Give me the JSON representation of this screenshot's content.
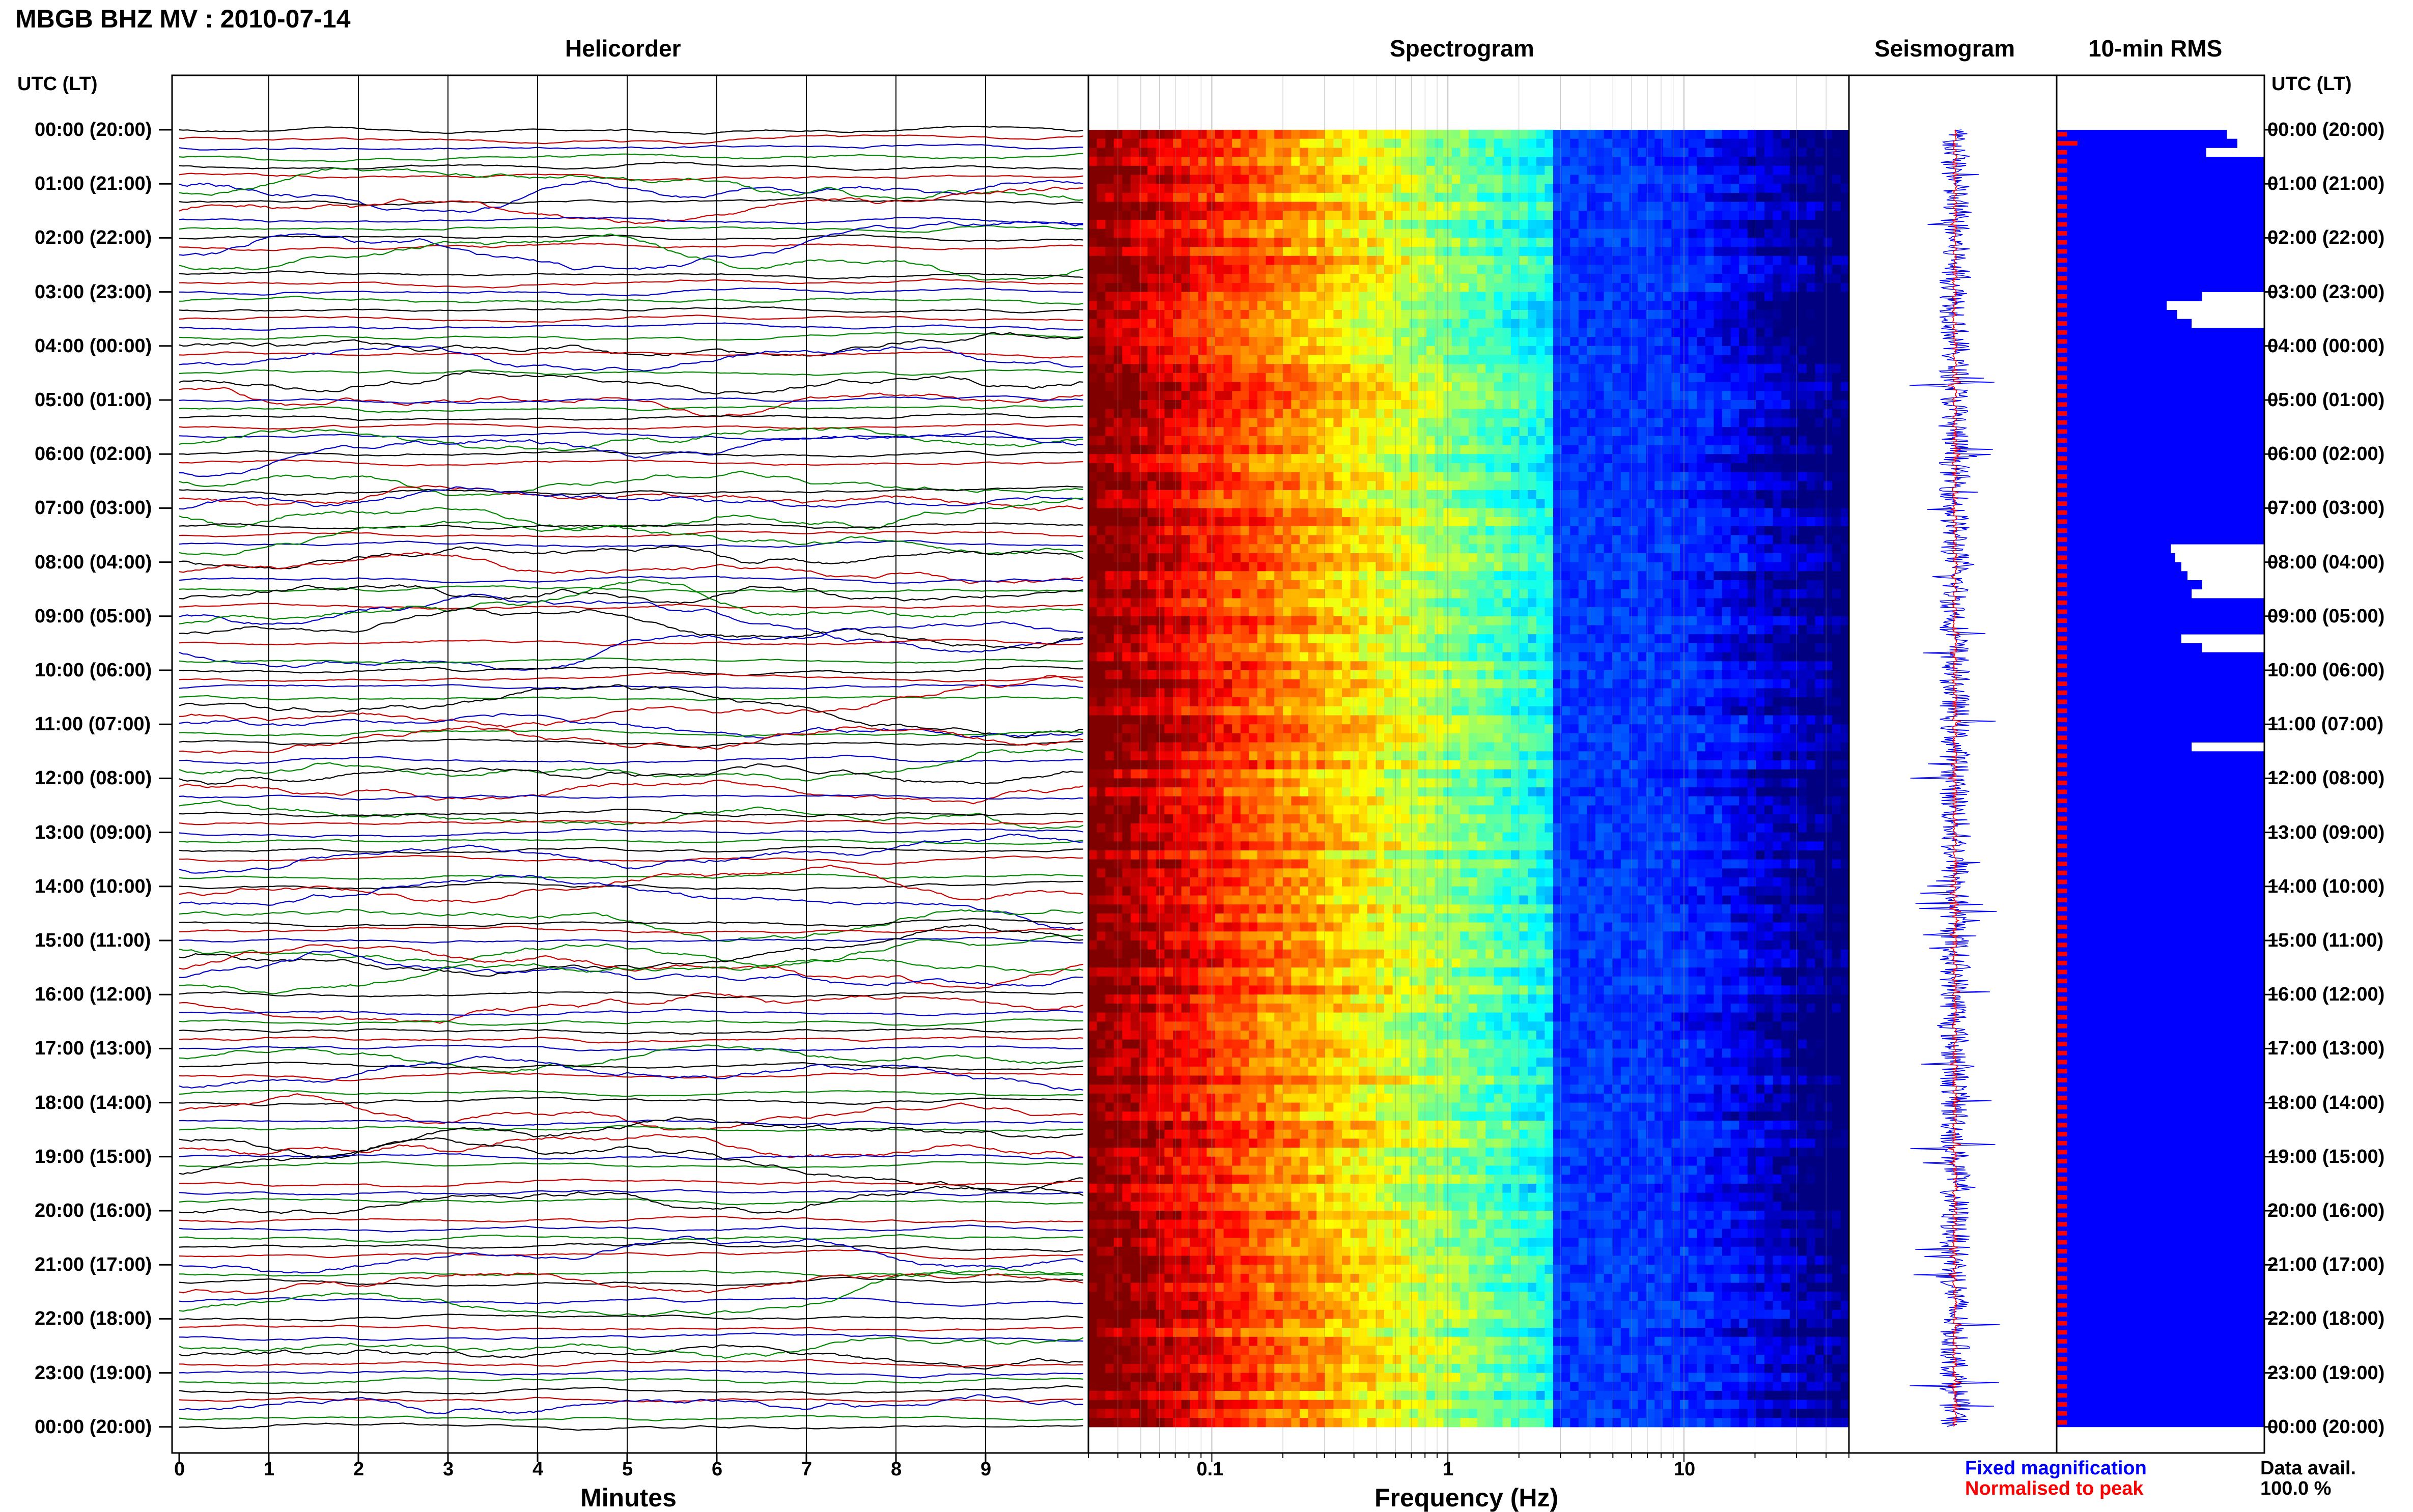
{
  "header": {
    "title": "MBGB BHZ MV : 2010-07-14",
    "utc_label": "UTC (LT)",
    "utc_label_right": "UTC (LT)"
  },
  "panels": {
    "helicorder": "Helicorder",
    "spectrogram": "Spectrogram",
    "seismogram": "Seismogram",
    "rms": "10-min RMS"
  },
  "axes": {
    "minutes_label": "Minutes",
    "frequency_label": "Frequency (Hz)",
    "minute_ticks": [
      "0",
      "1",
      "2",
      "3",
      "4",
      "5",
      "6",
      "7",
      "8",
      "9"
    ],
    "frequency_ticks": [
      "0.1",
      "1",
      "10"
    ]
  },
  "time_labels": [
    "00:00 (20:00)",
    "01:00 (21:00)",
    "02:00 (22:00)",
    "03:00 (23:00)",
    "04:00 (00:00)",
    "05:00 (01:00)",
    "06:00 (02:00)",
    "07:00 (03:00)",
    "08:00 (04:00)",
    "09:00 (05:00)",
    "10:00 (06:00)",
    "11:00 (07:00)",
    "12:00 (08:00)",
    "13:00 (09:00)",
    "14:00 (10:00)",
    "15:00 (11:00)",
    "16:00 (12:00)",
    "17:00 (13:00)",
    "18:00 (14:00)",
    "19:00 (15:00)",
    "20:00 (16:00)",
    "21:00 (17:00)",
    "22:00 (18:00)",
    "23:00 (19:00)",
    "00:00 (20:00)"
  ],
  "legend": {
    "fixed": "Fixed magnification",
    "normalised": "Normalised to peak",
    "fixed_color": "#0000ff",
    "normalised_color": "#ff0000"
  },
  "data_avail": {
    "label": "Data avail.",
    "value": "100.0 %"
  },
  "chart_data": {
    "type": "heatmap",
    "trace_colors": [
      "#000000",
      "#cc0000",
      "#0000cc",
      "#008800"
    ],
    "x_minutes": [
      0,
      10
    ],
    "y_hours_utc": [
      0,
      24
    ],
    "frequency_range_hz": [
      0.03,
      50
    ],
    "frequency_scale": "log",
    "colormap": "jet",
    "rms_white_gap_fraction_per_10min": [
      0.18,
      0.13,
      0.28,
      0.0,
      0.0,
      0.0,
      0.0,
      0.0,
      0.0,
      0.0,
      0.0,
      0.0,
      0.0,
      0.0,
      0.0,
      0.0,
      0.0,
      0.0,
      0.3,
      0.47,
      0.42,
      0.35,
      0.0,
      0.0,
      0.0,
      0.0,
      0.0,
      0.0,
      0.0,
      0.0,
      0.0,
      0.0,
      0.0,
      0.0,
      0.0,
      0.0,
      0.0,
      0.0,
      0.0,
      0.0,
      0.0,
      0.0,
      0.0,
      0.0,
      0.0,
      0.0,
      0.45,
      0.43,
      0.4,
      0.37,
      0.3,
      0.35,
      0.0,
      0.0,
      0.0,
      0.0,
      0.4,
      0.3,
      0.0,
      0.0,
      0.0,
      0.0,
      0.0,
      0.0,
      0.0,
      0.0,
      0.0,
      0.0,
      0.35,
      0.0,
      0.0,
      0.0,
      0.0,
      0.0,
      0.0,
      0.0,
      0.0,
      0.0,
      0.0,
      0.0,
      0.0,
      0.0,
      0.0,
      0.0,
      0.0,
      0.0,
      0.0,
      0.0,
      0.0,
      0.0,
      0.0,
      0.0,
      0.0,
      0.0,
      0.0,
      0.0,
      0.0,
      0.0,
      0.0,
      0.0,
      0.0,
      0.0,
      0.0,
      0.0,
      0.0,
      0.0,
      0.0,
      0.0,
      0.0,
      0.0,
      0.0,
      0.0,
      0.0,
      0.0,
      0.0,
      0.0,
      0.0,
      0.0,
      0.0,
      0.0,
      0.0,
      0.0,
      0.0,
      0.0,
      0.0,
      0.0,
      0.0,
      0.0,
      0.0,
      0.0,
      0.0,
      0.0,
      0.0,
      0.0,
      0.0,
      0.0,
      0.0,
      0.0,
      0.0,
      0.0,
      0.0,
      0.0,
      0.0,
      0.0
    ],
    "rms_normalised_fraction_per_10min": [
      0.05,
      0.1,
      0.05,
      0.05,
      0.05,
      0.05,
      0.05,
      0.05,
      0.05,
      0.05,
      0.05,
      0.05,
      0.05,
      0.05,
      0.05,
      0.05,
      0.05,
      0.05,
      0.05,
      0.05,
      0.05,
      0.05,
      0.05,
      0.05,
      0.05,
      0.05,
      0.05,
      0.05,
      0.05,
      0.05,
      0.05,
      0.05,
      0.05,
      0.05,
      0.05,
      0.05,
      0.05,
      0.05,
      0.05,
      0.05,
      0.05,
      0.05,
      0.05,
      0.05,
      0.05,
      0.05,
      0.05,
      0.05,
      0.05,
      0.05,
      0.05,
      0.05,
      0.05,
      0.05,
      0.05,
      0.05,
      0.05,
      0.05,
      0.05,
      0.05,
      0.05,
      0.05,
      0.05,
      0.05,
      0.05,
      0.05,
      0.05,
      0.05,
      0.05,
      0.05,
      0.05,
      0.05,
      0.05,
      0.05,
      0.05,
      0.05,
      0.05,
      0.05,
      0.05,
      0.05,
      0.05,
      0.05,
      0.05,
      0.05,
      0.05,
      0.05,
      0.05,
      0.05,
      0.05,
      0.05,
      0.05,
      0.05,
      0.05,
      0.05,
      0.05,
      0.05,
      0.05,
      0.05,
      0.05,
      0.05,
      0.05,
      0.05,
      0.05,
      0.05,
      0.05,
      0.05,
      0.05,
      0.05,
      0.05,
      0.05,
      0.05,
      0.05,
      0.05,
      0.05,
      0.05,
      0.05,
      0.05,
      0.05,
      0.05,
      0.05,
      0.05,
      0.05,
      0.05,
      0.05,
      0.05,
      0.05,
      0.05,
      0.05,
      0.05,
      0.05,
      0.05,
      0.05,
      0.05,
      0.05,
      0.05,
      0.05,
      0.05,
      0.05,
      0.05,
      0.05,
      0.05,
      0.05,
      0.05,
      0.05
    ]
  }
}
